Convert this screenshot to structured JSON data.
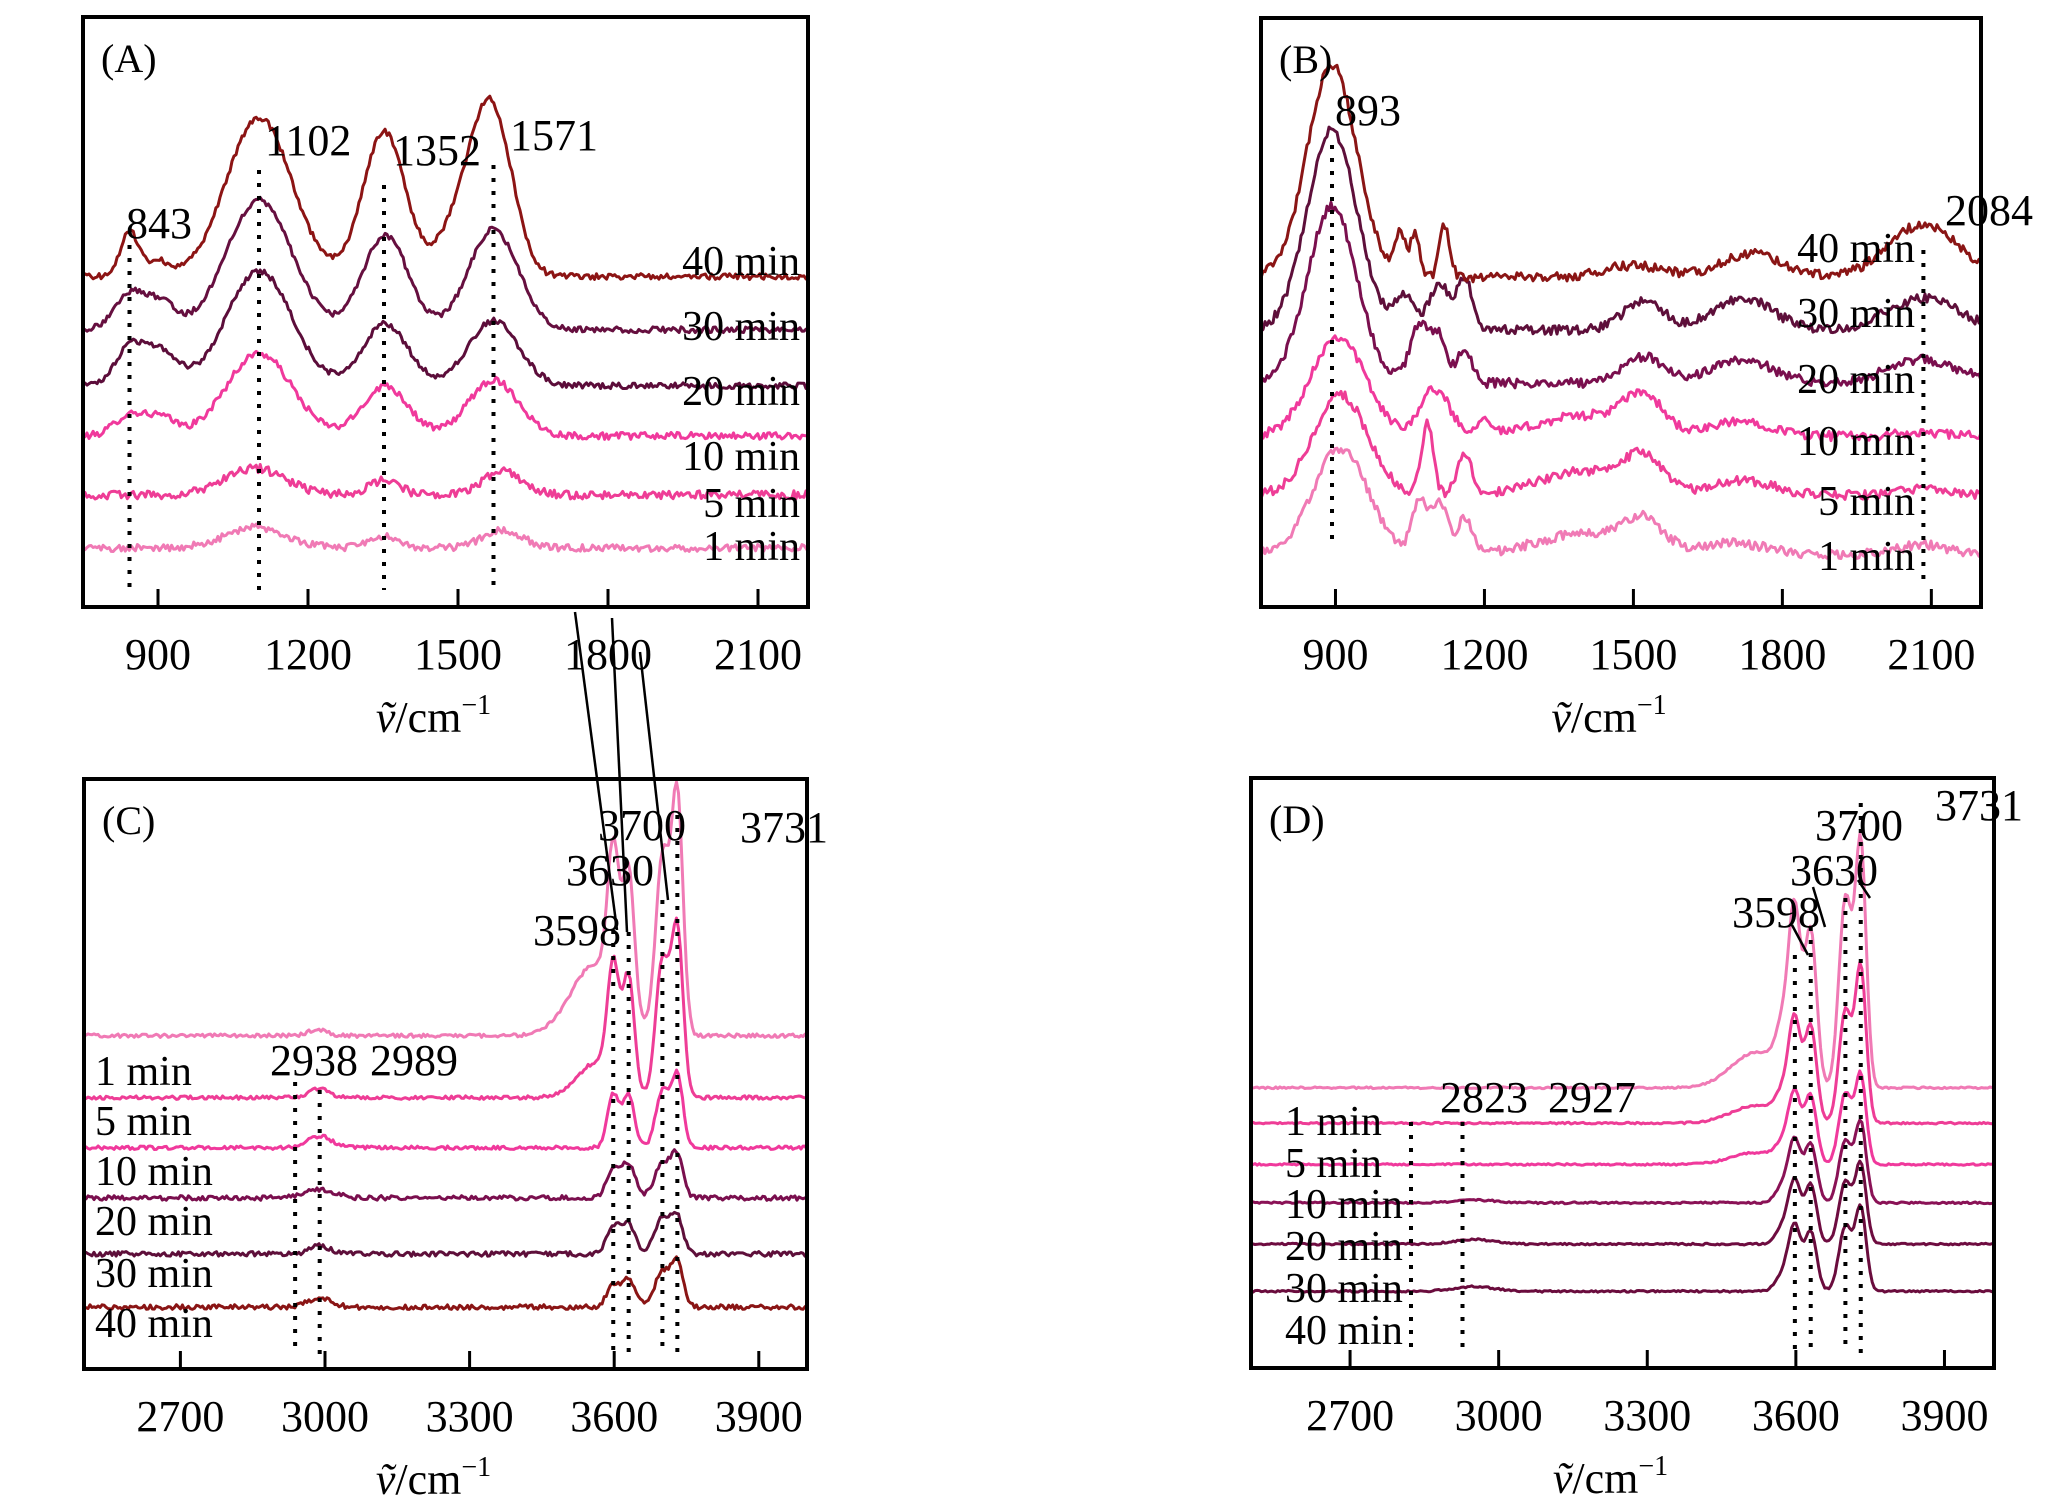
{
  "chart_data": [
    {
      "id": "A",
      "type": "line",
      "panel_label": "(A)",
      "xlabel": "ṽ/cm⁻¹",
      "xlabel_main": "ṽ/cm",
      "xlabel_sup": "−1",
      "ylabel": "",
      "xlim": [
        750,
        2200
      ],
      "xticks": [
        900,
        1200,
        1500,
        1800,
        2100
      ],
      "tick_labels": [
        "900",
        "1200",
        "1500",
        "1800",
        "2100"
      ],
      "ylim": [
        0,
        10
      ],
      "grid": false,
      "legend": "inline-right",
      "label_side": "right",
      "peak_markers": [
        {
          "x": 843,
          "label": "843"
        },
        {
          "x": 1102,
          "label": "1102"
        },
        {
          "x": 1352,
          "label": "1352"
        },
        {
          "x": 1571,
          "label": "1571"
        }
      ],
      "series": [
        {
          "name": "1 min",
          "color": "#f07ab5",
          "offset": 1.0,
          "noise": 0.06,
          "peaks": [
            [
              1095,
              0.35,
              60
            ],
            [
              1352,
              0.2,
              30
            ],
            [
              1590,
              0.3,
              40
            ]
          ]
        },
        {
          "name": "5 min",
          "color": "#ee3d96",
          "offset": 1.9,
          "noise": 0.07,
          "peaks": [
            [
              1095,
              0.45,
              60
            ],
            [
              1352,
              0.25,
              30
            ],
            [
              1590,
              0.4,
              40
            ]
          ]
        },
        {
          "name": "10 min",
          "color": "#f0399c",
          "offset": 2.9,
          "noise": 0.06,
          "peaks": [
            [
              843,
              0.35,
              30
            ],
            [
              905,
              0.3,
              30
            ],
            [
              1102,
              1.4,
              65
            ],
            [
              1355,
              0.85,
              45
            ],
            [
              1571,
              0.95,
              50
            ]
          ]
        },
        {
          "name": "20 min",
          "color": "#5c0d3a",
          "offset": 3.75,
          "noise": 0.05,
          "peaks": [
            [
              843,
              0.6,
              30
            ],
            [
              905,
              0.55,
              35
            ],
            [
              1102,
              1.95,
              65
            ],
            [
              1355,
              1.05,
              45
            ],
            [
              1571,
              1.1,
              50
            ]
          ]
        },
        {
          "name": "30 min",
          "color": "#660f3f",
          "offset": 4.7,
          "noise": 0.05,
          "peaks": [
            [
              843,
              0.6,
              30
            ],
            [
              905,
              0.45,
              30
            ],
            [
              1102,
              2.2,
              65
            ],
            [
              1355,
              1.6,
              45
            ],
            [
              1571,
              1.7,
              50
            ]
          ]
        },
        {
          "name": "40 min",
          "color": "#8c1414",
          "offset": 5.6,
          "noise": 0.05,
          "peaks": [
            [
              843,
              0.75,
              18
            ],
            [
              900,
              0.25,
              25
            ],
            [
              1102,
              2.7,
              65
            ],
            [
              1352,
              2.45,
              42
            ],
            [
              1520,
              1.1,
              50
            ],
            [
              1571,
              2.3,
              40
            ]
          ]
        }
      ]
    },
    {
      "id": "B",
      "type": "line",
      "panel_label": "(B)",
      "xlabel": "ṽ/cm⁻¹",
      "xlabel_main": "ṽ/cm",
      "xlabel_sup": "−1",
      "ylabel": "",
      "xlim": [
        750,
        2200
      ],
      "xticks": [
        900,
        1200,
        1500,
        1800,
        2100
      ],
      "tick_labels": [
        "900",
        "1200",
        "1500",
        "1800",
        "2100"
      ],
      "ylim": [
        0,
        10
      ],
      "grid": false,
      "legend": "inline-right",
      "label_side": "right",
      "peak_markers": [
        {
          "x": 893,
          "label": "893"
        },
        {
          "x": 2084,
          "label": "2084"
        }
      ],
      "series": [
        {
          "name": "1 min",
          "color": "#f07ab5",
          "offset": 0.9,
          "noise": 0.08,
          "peaks": [
            [
              910,
              1.8,
              55
            ],
            [
              1070,
              0.9,
              15
            ],
            [
              1110,
              0.9,
              15
            ],
            [
              1160,
              0.6,
              15
            ],
            [
              1400,
              0.35,
              90
            ],
            [
              1520,
              0.5,
              40
            ],
            [
              1700,
              0.2,
              60
            ],
            [
              2084,
              0.15,
              50
            ]
          ]
        },
        {
          "name": "5 min",
          "color": "#ee3d96",
          "offset": 1.9,
          "noise": 0.08,
          "peaks": [
            [
              910,
              1.7,
              55
            ],
            [
              1085,
              1.2,
              12
            ],
            [
              1160,
              0.7,
              15
            ],
            [
              1400,
              0.4,
              90
            ],
            [
              1520,
              0.55,
              40
            ],
            [
              1720,
              0.25,
              60
            ],
            [
              2084,
              0.1,
              50
            ]
          ]
        },
        {
          "name": "10 min",
          "color": "#f0399c",
          "offset": 2.9,
          "noise": 0.08,
          "peaks": [
            [
              905,
              1.7,
              55
            ],
            [
              1100,
              0.8,
              30
            ],
            [
              1200,
              0.3,
              15
            ],
            [
              1400,
              0.35,
              90
            ],
            [
              1520,
              0.6,
              40
            ],
            [
              1720,
              0.25,
              60
            ],
            [
              2084,
              0.05,
              50
            ]
          ]
        },
        {
          "name": "20 min",
          "color": "#7a0f4e",
          "offset": 3.8,
          "noise": 0.08,
          "peaks": [
            [
              893,
              3.0,
              50
            ],
            [
              1070,
              1.0,
              20
            ],
            [
              1110,
              0.7,
              15
            ],
            [
              1160,
              0.6,
              15
            ],
            [
              1520,
              0.45,
              40
            ],
            [
              1720,
              0.4,
              60
            ],
            [
              2084,
              0.4,
              70
            ]
          ]
        },
        {
          "name": "30 min",
          "color": "#5e0f3a",
          "offset": 4.7,
          "noise": 0.08,
          "peaks": [
            [
              893,
              3.4,
              50
            ],
            [
              1040,
              0.6,
              20
            ],
            [
              1110,
              0.8,
              20
            ],
            [
              1160,
              0.9,
              15
            ],
            [
              1520,
              0.5,
              40
            ],
            [
              1720,
              0.55,
              60
            ],
            [
              2084,
              0.55,
              70
            ]
          ]
        },
        {
          "name": "40 min",
          "color": "#8a1515",
          "offset": 5.6,
          "noise": 0.08,
          "peaks": [
            [
              893,
              3.6,
              50
            ],
            [
              1030,
              0.7,
              10
            ],
            [
              1060,
              0.7,
              10
            ],
            [
              1120,
              0.9,
              10
            ],
            [
              1500,
              0.2,
              60
            ],
            [
              1740,
              0.4,
              60
            ],
            [
              2084,
              0.9,
              70
            ]
          ]
        }
      ]
    },
    {
      "id": "C",
      "type": "line",
      "panel_label": "(C)",
      "xlabel": "ṽ/cm⁻¹",
      "xlabel_main": "ṽ/cm",
      "xlabel_sup": "−1",
      "ylabel": "",
      "xlim": [
        2500,
        4000
      ],
      "xticks": [
        2700,
        3000,
        3300,
        3600,
        3900
      ],
      "tick_labels": [
        "2700",
        "3000",
        "3300",
        "3600",
        "3900"
      ],
      "ylim": [
        0,
        10
      ],
      "grid": false,
      "legend": "inline-left",
      "label_side": "left",
      "peak_markers": [
        {
          "x": 2938,
          "label": "2938"
        },
        {
          "x": 2989,
          "label": "2989"
        },
        {
          "x": 3598,
          "label": "3598"
        },
        {
          "x": 3630,
          "label": "3630"
        },
        {
          "x": 3700,
          "label": "3700"
        },
        {
          "x": 3731,
          "label": "3731"
        }
      ],
      "series": [
        {
          "name": "1 min",
          "color": "#f07ab5",
          "offset": 5.65,
          "noise": 0.03,
          "peaks": [
            [
              2985,
              0.1,
              20
            ],
            [
              3560,
              1.2,
              50
            ],
            [
              3598,
              2.4,
              12
            ],
            [
              3630,
              2.4,
              12
            ],
            [
              3700,
              3.0,
              14
            ],
            [
              3731,
              4.0,
              12
            ]
          ]
        },
        {
          "name": "5 min",
          "color": "#ee3d96",
          "offset": 4.6,
          "noise": 0.03,
          "peaks": [
            [
              2989,
              0.15,
              20
            ],
            [
              3565,
              0.6,
              40
            ],
            [
              3598,
              1.9,
              12
            ],
            [
              3630,
              1.9,
              12
            ],
            [
              3700,
              2.3,
              14
            ],
            [
              3731,
              2.8,
              12
            ]
          ]
        },
        {
          "name": "10 min",
          "color": "#f0399c",
          "offset": 3.75,
          "noise": 0.03,
          "peaks": [
            [
              2989,
              0.2,
              25
            ],
            [
              3598,
              0.9,
              12
            ],
            [
              3630,
              0.9,
              12
            ],
            [
              3700,
              0.95,
              14
            ],
            [
              3731,
              1.2,
              12
            ]
          ]
        },
        {
          "name": "20 min",
          "color": "#7a0f4e",
          "offset": 2.9,
          "noise": 0.04,
          "peaks": [
            [
              2989,
              0.15,
              30
            ],
            [
              3598,
              0.5,
              14
            ],
            [
              3630,
              0.55,
              14
            ],
            [
              3700,
              0.6,
              16
            ],
            [
              3731,
              0.7,
              12
            ]
          ]
        },
        {
          "name": "30 min",
          "color": "#5e0f3a",
          "offset": 1.95,
          "noise": 0.04,
          "peaks": [
            [
              2989,
              0.15,
              20
            ],
            [
              3598,
              0.45,
              14
            ],
            [
              3630,
              0.5,
              14
            ],
            [
              3700,
              0.6,
              16
            ],
            [
              3731,
              0.6,
              12
            ]
          ]
        },
        {
          "name": "40 min",
          "color": "#8a1515",
          "offset": 1.05,
          "noise": 0.04,
          "peaks": [
            [
              2989,
              0.15,
              25
            ],
            [
              3598,
              0.35,
              14
            ],
            [
              3630,
              0.45,
              14
            ],
            [
              3700,
              0.6,
              16
            ],
            [
              3731,
              0.75,
              12
            ]
          ]
        }
      ]
    },
    {
      "id": "D",
      "type": "line",
      "panel_label": "(D)",
      "xlabel": "ṽ/cm⁻¹",
      "xlabel_main": "ṽ/cm",
      "xlabel_sup": "−1",
      "ylabel": "",
      "xlim": [
        2500,
        4000
      ],
      "xticks": [
        2700,
        3000,
        3300,
        3600,
        3900
      ],
      "tick_labels": [
        "2700",
        "3000",
        "3300",
        "3600",
        "3900"
      ],
      "ylim": [
        0,
        10
      ],
      "grid": false,
      "legend": "inline-left",
      "label_side": "left",
      "peak_markers": [
        {
          "x": 2823,
          "label": "2823"
        },
        {
          "x": 2927,
          "label": "2927"
        },
        {
          "x": 3598,
          "label": "3598"
        },
        {
          "x": 3630,
          "label": "3630"
        },
        {
          "x": 3700,
          "label": "3700"
        },
        {
          "x": 3731,
          "label": "3731"
        }
      ],
      "series": [
        {
          "name": "1 min",
          "color": "#f07ab5",
          "offset": 4.75,
          "noise": 0.015,
          "peaks": [
            [
              3520,
              0.6,
              50
            ],
            [
              3575,
              0.8,
              15
            ],
            [
              3598,
              2.7,
              12
            ],
            [
              3630,
              2.6,
              12
            ],
            [
              3700,
              3.2,
              13
            ],
            [
              3731,
              4.1,
              11
            ]
          ]
        },
        {
          "name": "5 min",
          "color": "#ee3d96",
          "offset": 4.15,
          "noise": 0.015,
          "peaks": [
            [
              3520,
              0.3,
              50
            ],
            [
              3575,
              0.4,
              15
            ],
            [
              3598,
              1.6,
              12
            ],
            [
              3630,
              1.6,
              12
            ],
            [
              3700,
              1.9,
              13
            ],
            [
              3731,
              2.6,
              11
            ]
          ]
        },
        {
          "name": "10 min",
          "color": "#f0399c",
          "offset": 3.45,
          "noise": 0.015,
          "peaks": [
            [
              3520,
              0.2,
              50
            ],
            [
              3575,
              0.3,
              15
            ],
            [
              3598,
              1.1,
              12
            ],
            [
              3630,
              1.15,
              12
            ],
            [
              3700,
              1.2,
              13
            ],
            [
              3731,
              1.5,
              11
            ]
          ]
        },
        {
          "name": "20 min",
          "color": "#8a1256",
          "offset": 2.8,
          "noise": 0.015,
          "peaks": [
            [
              2950,
              0.05,
              40
            ],
            [
              3575,
              0.3,
              15
            ],
            [
              3598,
              1.0,
              12
            ],
            [
              3630,
              1.0,
              12
            ],
            [
              3700,
              1.05,
              13
            ],
            [
              3731,
              1.35,
              11
            ]
          ]
        },
        {
          "name": "30 min",
          "color": "#6e0c40",
          "offset": 2.1,
          "noise": 0.015,
          "peaks": [
            [
              2950,
              0.08,
              40
            ],
            [
              3575,
              0.3,
              15
            ],
            [
              3598,
              1.0,
              12
            ],
            [
              3630,
              1.0,
              12
            ],
            [
              3700,
              1.05,
              13
            ],
            [
              3731,
              1.35,
              11
            ]
          ]
        },
        {
          "name": "40 min",
          "color": "#6a0c3d",
          "offset": 1.3,
          "noise": 0.015,
          "peaks": [
            [
              2950,
              0.08,
              40
            ],
            [
              3575,
              0.3,
              15
            ],
            [
              3598,
              1.05,
              12
            ],
            [
              3630,
              1.0,
              12
            ],
            [
              3700,
              1.1,
              13
            ],
            [
              3731,
              1.4,
              11
            ]
          ]
        }
      ]
    }
  ]
}
